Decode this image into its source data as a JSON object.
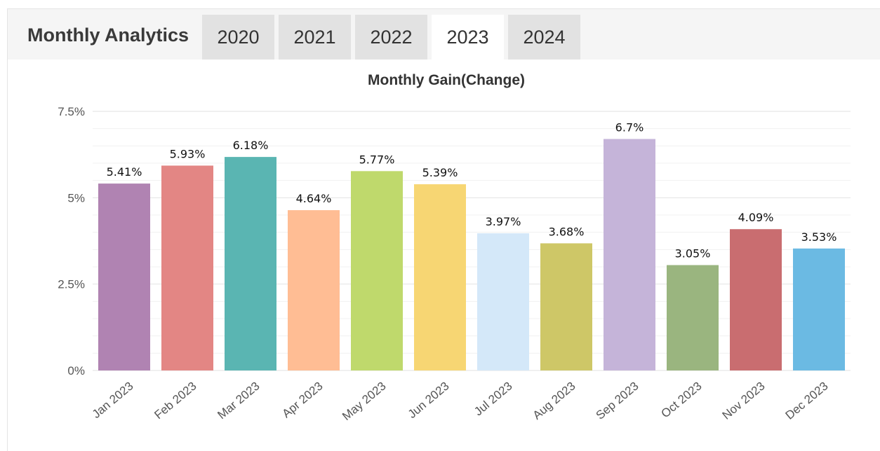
{
  "header": {
    "title": "Monthly Analytics",
    "tabs": [
      {
        "label": "2020",
        "active": false
      },
      {
        "label": "2021",
        "active": false
      },
      {
        "label": "2022",
        "active": false
      },
      {
        "label": "2023",
        "active": true
      },
      {
        "label": "2024",
        "active": false
      }
    ]
  },
  "chart_data": {
    "type": "bar",
    "title": "Monthly Gain(Change)",
    "xlabel": "",
    "ylabel": "",
    "categories": [
      "Jan 2023",
      "Feb 2023",
      "Mar 2023",
      "Apr 2023",
      "May 2023",
      "Jun 2023",
      "Jul 2023",
      "Aug 2023",
      "Sep 2023",
      "Oct 2023",
      "Nov 2023",
      "Dec 2023"
    ],
    "values": [
      5.41,
      5.93,
      6.18,
      4.64,
      5.77,
      5.39,
      3.97,
      3.68,
      6.7,
      3.05,
      4.09,
      3.53
    ],
    "data_labels": [
      "5.41%",
      "5.93%",
      "6.18%",
      "4.64%",
      "5.77%",
      "5.39%",
      "3.97%",
      "3.68%",
      "6.7%",
      "3.05%",
      "4.09%",
      "3.53%"
    ],
    "colors": [
      "#b083b2",
      "#e38684",
      "#5ab5b2",
      "#ffbd94",
      "#bfd96c",
      "#f7d673",
      "#d4e8f9",
      "#cec767",
      "#c5b4d9",
      "#9ab57f",
      "#c96d70",
      "#6bbae3"
    ],
    "ylim": [
      0,
      7.5
    ],
    "yticks": [
      0,
      2.5,
      5,
      7.5
    ],
    "ytick_labels": [
      "0%",
      "2.5%",
      "5%",
      "7.5%"
    ],
    "grid": true,
    "legend": "none"
  }
}
